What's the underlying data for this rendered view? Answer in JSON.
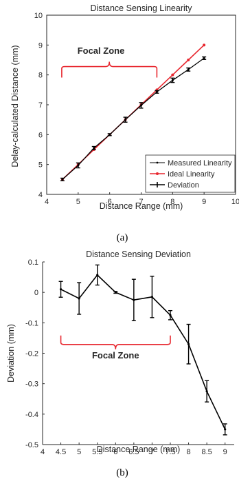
{
  "captions": [
    "(a)",
    "(b)"
  ],
  "chart_data": [
    {
      "type": "line",
      "title": "Distance Sensing Linearity",
      "xlabel": "Distance Range (mm)",
      "ylabel": "Delay-calculated Distance (mm)",
      "xlim": [
        4,
        10
      ],
      "ylim": [
        4,
        10
      ],
      "xticks": [
        4,
        5,
        6,
        7,
        8,
        9,
        10
      ],
      "yticks": [
        4,
        5,
        6,
        7,
        8,
        9,
        10
      ],
      "grid": false,
      "legend_position": "bottom-right",
      "x": [
        4.5,
        5,
        5.5,
        6,
        6.5,
        7,
        7.5,
        8,
        8.5,
        9
      ],
      "series": [
        {
          "name": "Measured Linearity",
          "color": "#000000",
          "values": [
            4.5,
            4.97,
            5.55,
            6.0,
            6.5,
            6.98,
            7.43,
            7.82,
            8.18,
            8.56
          ]
        },
        {
          "name": "Ideal Linearity",
          "color": "#e8272f",
          "values": [
            4.5,
            5.0,
            5.5,
            6.0,
            6.5,
            7.0,
            7.5,
            8.0,
            8.5,
            9.0
          ]
        },
        {
          "name": "Deviation",
          "color": "#000000",
          "values": [
            4.5,
            4.97,
            5.55,
            6.0,
            6.5,
            6.98,
            7.43,
            7.82,
            8.18,
            8.56
          ],
          "error": [
            0.02,
            0.06,
            0.03,
            0.01,
            0.06,
            0.07,
            0.02,
            0.05,
            0.03,
            0.02
          ]
        }
      ],
      "annotation": {
        "text": "Focal Zone",
        "x_range": [
          4.5,
          7.5
        ],
        "y": 8.28
      }
    },
    {
      "type": "line",
      "title": "Distance Sensing Deviation",
      "xlabel": "Distance Range (mm)",
      "ylabel": "Deviation (mm)",
      "xlim": [
        4,
        9.25
      ],
      "ylim": [
        -0.5,
        0.1
      ],
      "xticks": [
        4,
        5,
        6,
        7,
        8,
        9
      ],
      "xtick_labels": [
        "4",
        "4.5",
        "5",
        "5.5",
        "6",
        "6.5",
        "7",
        "7.5",
        "8",
        "8.5",
        "9"
      ],
      "xtick_positions": [
        4,
        4.5,
        5,
        5.5,
        6,
        6.5,
        7,
        7.5,
        8,
        8.5,
        9
      ],
      "yticks": [
        0.1,
        0,
        -0.1,
        -0.2,
        -0.3,
        -0.4,
        -0.5
      ],
      "ytick_labels": [
        "0.1",
        "0",
        "-0.1",
        "-0.2",
        "-0.3",
        "-0.4",
        "-0.5"
      ],
      "grid": false,
      "x": [
        4.5,
        5,
        5.5,
        6,
        6.5,
        7,
        7.5,
        8,
        8.5,
        9
      ],
      "values": [
        0.01,
        -0.02,
        0.057,
        0.0,
        -0.025,
        -0.015,
        -0.075,
        -0.17,
        -0.325,
        -0.45
      ],
      "error": [
        0.026,
        0.052,
        0.033,
        0.003,
        0.068,
        0.068,
        0.015,
        0.065,
        0.035,
        0.018
      ],
      "annotation": {
        "text": "Focal Zone",
        "x_range": [
          4.5,
          7.5
        ],
        "y": -0.135
      }
    }
  ]
}
